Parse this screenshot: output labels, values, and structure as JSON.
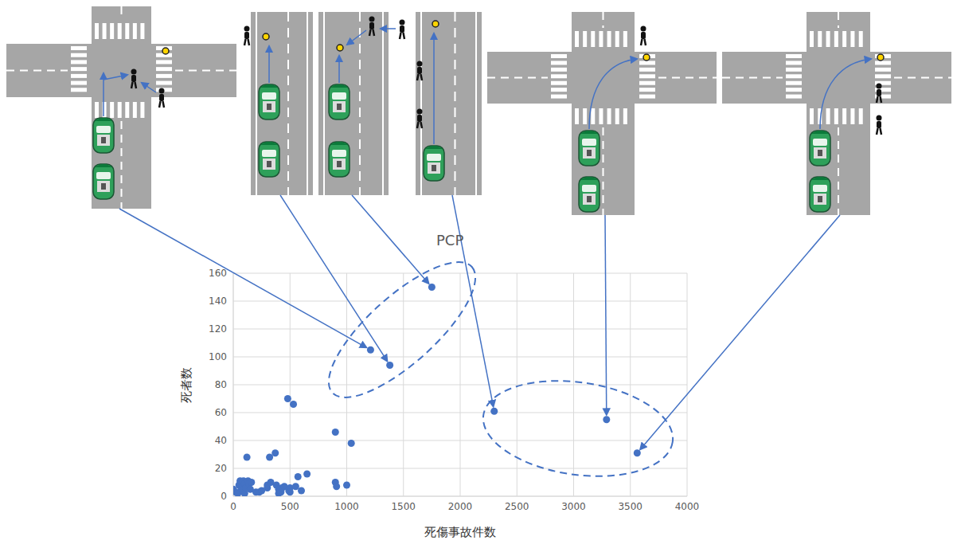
{
  "chart_data": {
    "type": "scatter",
    "x_label": "死傷事故件数",
    "y_label": "死者数",
    "annotations": [
      "PCP"
    ],
    "color": "#4472c4",
    "grid": true,
    "xlim": [
      0,
      4000
    ],
    "xticks": [
      0,
      500,
      1000,
      1500,
      2000,
      2500,
      3000,
      3500,
      4000
    ],
    "ylim": [
      0,
      160
    ],
    "yticks": [
      0,
      20,
      40,
      60,
      80,
      100,
      120,
      140,
      160
    ],
    "x": [
      1210,
      1380,
      1750,
      2300,
      3290,
      3560,
      0,
      20,
      40,
      50,
      60,
      70,
      80,
      90,
      100,
      100,
      110,
      120,
      130,
      140,
      150,
      160,
      200,
      230,
      250,
      300,
      300,
      320,
      330,
      370,
      380,
      400,
      400,
      420,
      430,
      450,
      480,
      490,
      500,
      500,
      530,
      550,
      570,
      600,
      650,
      900,
      900,
      910,
      1000,
      1040
    ],
    "y": [
      105,
      94,
      150,
      61,
      55,
      31,
      5,
      3,
      2,
      8,
      11,
      5,
      4,
      11,
      2,
      9,
      6,
      28,
      11,
      9,
      5,
      10,
      3,
      3,
      4,
      6,
      8,
      28,
      10,
      31,
      8,
      5,
      2,
      3,
      6,
      7,
      70,
      4,
      6,
      3,
      66,
      7,
      14,
      4,
      16,
      46,
      10,
      7,
      8,
      38
    ]
  }
}
